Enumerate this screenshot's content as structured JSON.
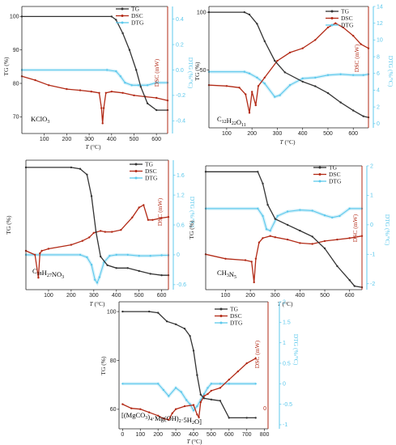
{
  "figure_colors": {
    "tg": "#333333",
    "dsc": "#b22a16",
    "dtg": "#5cc8ec"
  },
  "chart_data": [
    {
      "type": "line",
      "annotation": "KClO3",
      "annotation_sub": "3",
      "xlabel": "T (°C)",
      "ylabel_left": "TG (%)",
      "ylabel_dsc": "DSC (mW)",
      "ylabel_dtg": "DTG (%/°C)",
      "legend": [
        "TG",
        "DSC",
        "DTG"
      ],
      "xlim": [
        0,
        650
      ],
      "xticks": [
        100,
        200,
        300,
        400,
        500,
        600
      ],
      "ylim_left": [
        65,
        103
      ],
      "yticks_left": [
        70,
        80,
        90,
        100
      ],
      "yticks_dsc": [],
      "ylim_dtg": [
        -0.5,
        0.5
      ],
      "yticks_dtg": [
        -0.4,
        -0.2,
        0.0,
        0.2,
        0.4
      ],
      "series": [
        {
          "name": "TG",
          "axis": "left",
          "x": [
            0,
            400,
            420,
            450,
            480,
            510,
            530,
            560,
            600,
            650
          ],
          "y": [
            100,
            100,
            99,
            95,
            90,
            84,
            79,
            74,
            72,
            72
          ]
        },
        {
          "name": "DSC",
          "axis": "dtg",
          "x": [
            0,
            60,
            120,
            200,
            260,
            310,
            345,
            355,
            360,
            365,
            375,
            400,
            450,
            500,
            550,
            600,
            650
          ],
          "y": [
            -0.05,
            -0.08,
            -0.12,
            -0.15,
            -0.16,
            -0.17,
            -0.18,
            -0.3,
            -0.42,
            -0.3,
            -0.18,
            -0.17,
            -0.18,
            -0.2,
            -0.21,
            -0.22,
            -0.24
          ]
        },
        {
          "name": "DTG",
          "axis": "dtg",
          "x": [
            0,
            380,
            420,
            440,
            460,
            490,
            520,
            560,
            600,
            650
          ],
          "y": [
            0,
            0,
            -0.01,
            -0.05,
            -0.1,
            -0.12,
            -0.12,
            -0.12,
            -0.1,
            -0.1
          ]
        }
      ]
    },
    {
      "type": "line",
      "annotation": "C12H22O11",
      "xlabel": "T (°C)",
      "ylabel_left": "TG (%)",
      "ylabel_dsc": "DSC (mW)",
      "ylabel_dtg": "DTG (%/°C)",
      "legend": [
        "TG",
        "DSC",
        "DTG"
      ],
      "xlim": [
        30,
        660
      ],
      "xticks": [
        100,
        200,
        300,
        400,
        500,
        600
      ],
      "ylim_left": [
        0,
        105
      ],
      "yticks_left": [
        50,
        100
      ],
      "yticks_dsc": [],
      "ylim_dtg": [
        -0.5,
        14
      ],
      "yticks_dtg": [
        0,
        2,
        4,
        6,
        8,
        10,
        12,
        14
      ],
      "series": [
        {
          "name": "TG",
          "axis": "left",
          "x": [
            30,
            170,
            190,
            220,
            250,
            290,
            330,
            400,
            450,
            500,
            550,
            600,
            640,
            660
          ],
          "y": [
            100,
            100,
            98,
            90,
            75,
            58,
            48,
            40,
            36,
            30,
            22,
            15,
            10,
            9
          ]
        },
        {
          "name": "DSC",
          "axis": "dtg",
          "x": [
            30,
            100,
            150,
            175,
            190,
            200,
            215,
            225,
            250,
            300,
            350,
            400,
            450,
            500,
            530,
            560,
            600,
            630,
            660
          ],
          "y": [
            4.6,
            4.5,
            4.3,
            3.5,
            1.3,
            3.8,
            2.2,
            4.5,
            5.5,
            7.5,
            8.5,
            9.0,
            10.0,
            11.5,
            12.0,
            11.5,
            10.5,
            9.5,
            9.0
          ]
        },
        {
          "name": "DTG",
          "axis": "dtg",
          "x": [
            30,
            170,
            190,
            220,
            250,
            290,
            310,
            350,
            400,
            450,
            500,
            550,
            600,
            640,
            660
          ],
          "y": [
            6.2,
            6.2,
            6.0,
            5.5,
            4.8,
            3.2,
            3.4,
            4.6,
            5.4,
            5.5,
            5.8,
            5.9,
            5.8,
            5.8,
            5.9
          ]
        }
      ]
    },
    {
      "type": "line",
      "annotation": "C18H27NO3",
      "xlabel": "T (°C)",
      "ylabel_left": "TG (%)",
      "ylabel_dsc": "DSC (mW)",
      "ylabel_dtg": "DTG (%/°C)",
      "legend": [
        "TG",
        "DSC",
        "DTG"
      ],
      "xlim": [
        0,
        630
      ],
      "xticks": [
        100,
        200,
        300,
        400,
        500,
        600
      ],
      "ylim_left": [
        15,
        105
      ],
      "yticks_left": [],
      "yticks_dsc": [],
      "ylim_dtg": [
        -0.7,
        1.9
      ],
      "yticks_dtg": [
        -0.6,
        0.0,
        0.6,
        1.2,
        1.6
      ],
      "series": [
        {
          "name": "TG",
          "axis": "left",
          "x": [
            0,
            200,
            240,
            270,
            290,
            310,
            330,
            360,
            400,
            450,
            500,
            550,
            600,
            630
          ],
          "y": [
            100,
            100,
            99,
            95,
            80,
            55,
            38,
            32,
            30,
            30,
            28,
            26,
            25,
            25
          ]
        },
        {
          "name": "DSC",
          "axis": "dtg",
          "x": [
            0,
            40,
            55,
            62,
            70,
            100,
            200,
            250,
            280,
            300,
            330,
            350,
            380,
            420,
            470,
            500,
            520,
            540,
            560,
            600,
            630
          ],
          "y": [
            0.08,
            0.0,
            -0.46,
            0.03,
            0.08,
            0.12,
            0.2,
            0.28,
            0.35,
            0.44,
            0.48,
            0.46,
            0.46,
            0.5,
            0.75,
            0.95,
            1.0,
            0.7,
            0.7,
            0.74,
            0.76
          ]
        },
        {
          "name": "DTG",
          "axis": "dtg",
          "x": [
            0,
            240,
            270,
            290,
            305,
            315,
            325,
            345,
            370,
            400,
            450,
            500,
            550,
            600,
            630
          ],
          "y": [
            0.0,
            0.0,
            -0.05,
            -0.2,
            -0.5,
            -0.56,
            -0.45,
            -0.15,
            -0.02,
            0.0,
            0.0,
            -0.02,
            -0.02,
            -0.01,
            -0.01
          ]
        }
      ]
    },
    {
      "type": "line",
      "annotation": "CH3N5",
      "xlabel": "T (°C)",
      "ylabel_left": "TG (%)",
      "ylabel_dsc": "DSC (mW)",
      "ylabel_dtg": "DTG (%/°C)",
      "legend": [
        "TG",
        "DSC",
        "DTG"
      ],
      "xlim": [
        20,
        650
      ],
      "xticks": [
        100,
        200,
        300,
        400,
        500,
        600
      ],
      "ylim_left": [
        0,
        105
      ],
      "yticks_left": [],
      "yticks_dsc": [],
      "ylim_dtg": [
        -2.2,
        2.0
      ],
      "yticks_dtg": [
        -2,
        -1,
        0,
        1,
        2
      ],
      "series": [
        {
          "name": "TG",
          "axis": "left",
          "x": [
            20,
            230,
            250,
            270,
            300,
            350,
            400,
            450,
            500,
            550,
            600,
            620,
            650
          ],
          "y": [
            100,
            100,
            90,
            72,
            60,
            55,
            50,
            45,
            35,
            20,
            8,
            3,
            2
          ]
        },
        {
          "name": "DSC",
          "axis": "dtg",
          "x": [
            20,
            100,
            180,
            205,
            215,
            222,
            235,
            250,
            280,
            300,
            350,
            400,
            450,
            500,
            550,
            600,
            650
          ],
          "y": [
            -1.0,
            -1.15,
            -1.2,
            -1.25,
            -1.95,
            -1.15,
            -0.6,
            -0.45,
            -0.38,
            -0.42,
            -0.5,
            -0.62,
            -0.65,
            -0.55,
            -0.5,
            -0.45,
            -0.38
          ]
        },
        {
          "name": "DTG",
          "axis": "dtg",
          "x": [
            20,
            230,
            250,
            265,
            280,
            310,
            350,
            400,
            450,
            500,
            530,
            560,
            600,
            650
          ],
          "y": [
            0.55,
            0.55,
            0.3,
            -0.15,
            -0.2,
            0.3,
            0.45,
            0.5,
            0.48,
            0.32,
            0.25,
            0.3,
            0.55,
            0.55
          ]
        }
      ]
    },
    {
      "type": "line",
      "annotation": "[(MgCO3)4·Mg(OH)2·5H2O]",
      "xlabel": "T (°C)",
      "ylabel_left": "TG (%)",
      "ylabel_dsc": "DSC (mW)",
      "ylabel_dtg": "DTG (%/°C)",
      "legend": [
        "TG",
        "DSC",
        "DTG"
      ],
      "xlim": [
        -20,
        820
      ],
      "xticks": [
        0,
        100,
        200,
        300,
        400,
        500,
        600,
        700,
        800
      ],
      "ylim_left": [
        52,
        104
      ],
      "yticks_left": [
        60,
        80,
        100
      ],
      "yticks_dsc": [
        0
      ],
      "ylim_dtg": [
        -1.1,
        2.0
      ],
      "yticks_dtg": [
        -1.0,
        -0.5,
        0.0,
        0.5,
        1.0,
        1.5,
        2.0
      ],
      "series": [
        {
          "name": "TG",
          "axis": "left",
          "x": [
            0,
            150,
            200,
            250,
            300,
            350,
            380,
            400,
            420,
            440,
            460,
            500,
            550,
            600,
            700,
            750
          ],
          "y": [
            100,
            100,
            99.5,
            96,
            94.8,
            93,
            90,
            84,
            74,
            66,
            64.5,
            64,
            63.5,
            56.5,
            56.5,
            56.5
          ]
        },
        {
          "name": "DSC",
          "axis": "dtg",
          "x": [
            0,
            50,
            100,
            150,
            200,
            230,
            260,
            280,
            300,
            350,
            400,
            420,
            430,
            440,
            460,
            480,
            500,
            550,
            600,
            650,
            700,
            750
          ],
          "y": [
            -0.5,
            -0.6,
            -0.62,
            -0.7,
            -0.78,
            -0.85,
            -0.88,
            -0.72,
            -0.62,
            -0.55,
            -0.52,
            -0.75,
            -0.82,
            -0.45,
            -0.3,
            -0.25,
            -0.17,
            -0.1,
            0.1,
            0.3,
            0.5,
            0.62
          ]
        },
        {
          "name": "DTG",
          "axis": "dtg",
          "x": [
            0,
            200,
            230,
            260,
            300,
            330,
            360,
            380,
            400,
            420,
            440,
            460,
            480,
            500,
            550,
            600,
            750
          ],
          "y": [
            0.0,
            0.0,
            -0.15,
            -0.3,
            -0.1,
            -0.2,
            -0.4,
            -0.5,
            -0.65,
            -0.55,
            -0.4,
            -0.25,
            -0.1,
            0.0,
            0.0,
            0.0,
            0.0
          ]
        }
      ]
    }
  ]
}
